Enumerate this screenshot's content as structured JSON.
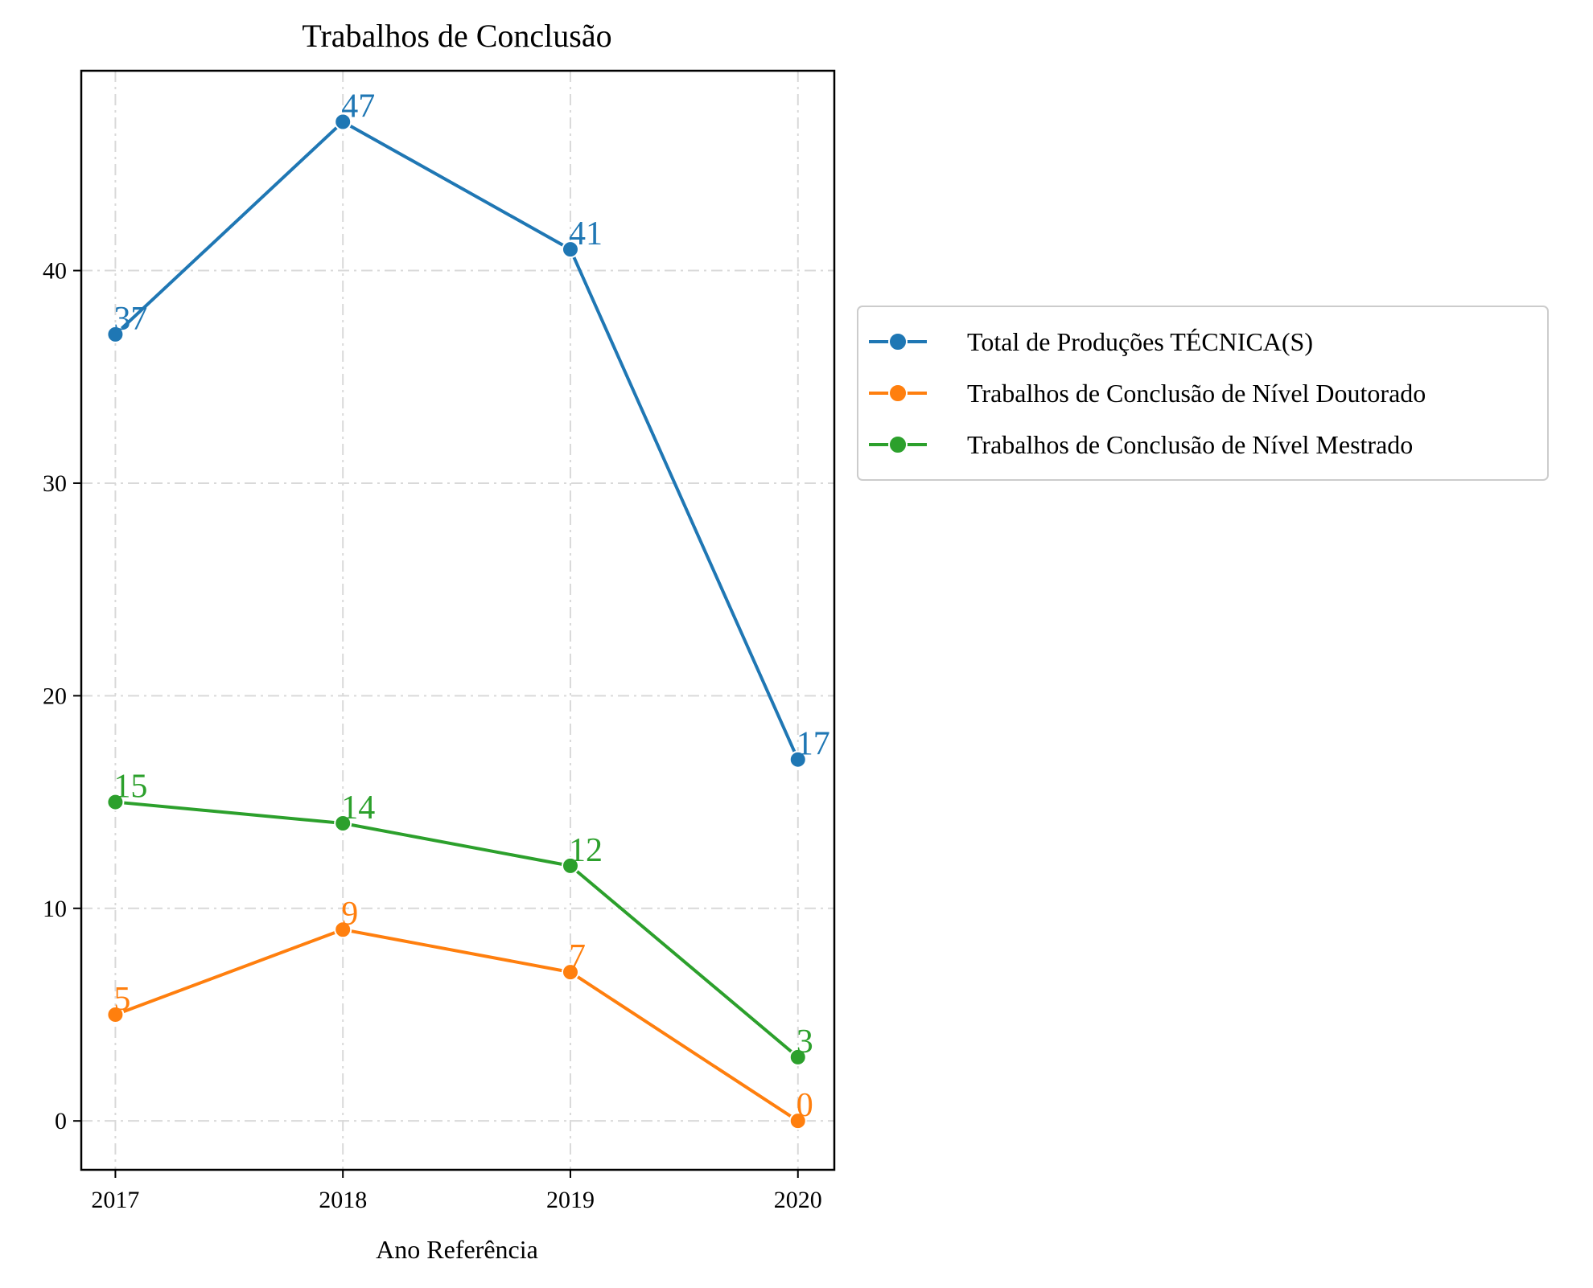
{
  "chart_data": {
    "type": "line",
    "title": "Trabalhos de Conclusão",
    "xlabel": "Ano Referência",
    "ylabel": "",
    "x": [
      "2017",
      "2018",
      "2019",
      "2020"
    ],
    "x_ticks": [
      "2017",
      "2018",
      "2019",
      "2020"
    ],
    "y_ticks": [
      "0",
      "10",
      "20",
      "30",
      "40"
    ],
    "xlim": [
      2016.85,
      2020.16
    ],
    "ylim": [
      -2.3,
      49.4
    ],
    "grid": true,
    "legend_position": "outside-right",
    "series": [
      {
        "name": "Total de Produções TÉCNICA(S)",
        "color": "#1f77b4",
        "values": [
          37,
          47,
          41,
          17
        ],
        "labels": [
          "37",
          "47",
          "41",
          "17"
        ]
      },
      {
        "name": "Trabalhos de Conclusão de Nível Doutorado",
        "color": "#ff7f0e",
        "values": [
          5,
          9,
          7,
          0
        ],
        "labels": [
          "5",
          "9",
          "7",
          "0"
        ]
      },
      {
        "name": "Trabalhos de Conclusão de Nível Mestrado",
        "color": "#2ca02c",
        "values": [
          15,
          14,
          12,
          3
        ],
        "labels": [
          "15",
          "14",
          "12",
          "3"
        ]
      }
    ]
  }
}
